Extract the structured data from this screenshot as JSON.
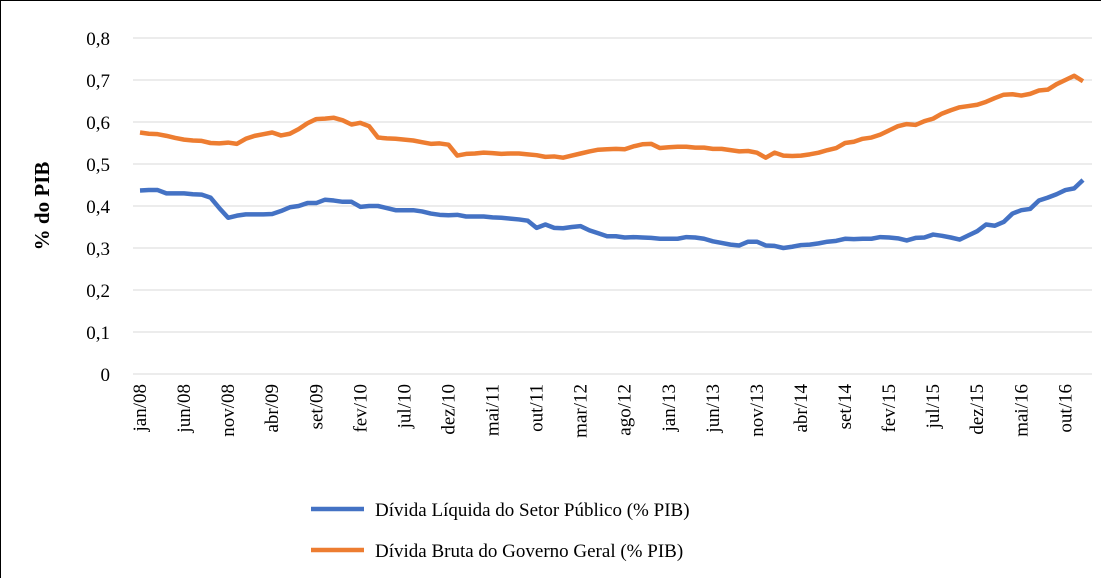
{
  "chart_data": {
    "type": "line",
    "ylabel": "% do PIB",
    "categories": [
      "jan/08",
      null,
      null,
      null,
      null,
      "jun/08",
      null,
      null,
      null,
      null,
      "nov/08",
      null,
      null,
      null,
      null,
      "abr/09",
      null,
      null,
      null,
      null,
      "set/09",
      null,
      null,
      null,
      null,
      "fev/10",
      null,
      null,
      null,
      null,
      "jul/10",
      null,
      null,
      null,
      null,
      "dez/10",
      null,
      null,
      null,
      null,
      "mai/11",
      null,
      null,
      null,
      null,
      "out/11",
      null,
      null,
      null,
      null,
      "mar/12",
      null,
      null,
      null,
      null,
      "ago/12",
      null,
      null,
      null,
      null,
      "jan/13",
      null,
      null,
      null,
      null,
      "jun/13",
      null,
      null,
      null,
      null,
      "nov/13",
      null,
      null,
      null,
      null,
      "abr/14",
      null,
      null,
      null,
      null,
      "set/14",
      null,
      null,
      null,
      null,
      "fev/15",
      null,
      null,
      null,
      null,
      "jul/15",
      null,
      null,
      null,
      null,
      "dez/15",
      null,
      null,
      null,
      null,
      "mai/16",
      null,
      null,
      null,
      null,
      "out/16",
      null,
      null
    ],
    "series": [
      {
        "name": "Dívida Líquida do Setor Público (% PIB)",
        "color": "#4472c4",
        "values": [
          0.437,
          0.438,
          0.438,
          0.43,
          0.43,
          0.43,
          0.428,
          0.427,
          0.42,
          0.395,
          0.372,
          0.377,
          0.38,
          0.38,
          0.38,
          0.381,
          0.388,
          0.397,
          0.4,
          0.407,
          0.407,
          0.415,
          0.413,
          0.41,
          0.41,
          0.398,
          0.4,
          0.4,
          0.395,
          0.39,
          0.39,
          0.39,
          0.387,
          0.382,
          0.379,
          0.378,
          0.379,
          0.375,
          0.375,
          0.375,
          0.373,
          0.372,
          0.37,
          0.368,
          0.365,
          0.348,
          0.356,
          0.348,
          0.347,
          0.35,
          0.352,
          0.342,
          0.335,
          0.328,
          0.328,
          0.325,
          0.326,
          0.325,
          0.324,
          0.322,
          0.322,
          0.322,
          0.326,
          0.325,
          0.322,
          0.316,
          0.312,
          0.308,
          0.306,
          0.315,
          0.315,
          0.306,
          0.305,
          0.3,
          0.303,
          0.307,
          0.308,
          0.311,
          0.315,
          0.317,
          0.322,
          0.321,
          0.322,
          0.322,
          0.326,
          0.325,
          0.323,
          0.318,
          0.324,
          0.325,
          0.332,
          0.329,
          0.325,
          0.32,
          0.33,
          0.34,
          0.356,
          0.353,
          0.362,
          0.382,
          0.39,
          0.393,
          0.413,
          0.42,
          0.428,
          0.438,
          0.442,
          0.462
        ]
      },
      {
        "name": "Dívida Bruta do Governo Geral (% PIB)",
        "color": "#ed7d31",
        "values": [
          0.575,
          0.572,
          0.571,
          0.567,
          0.562,
          0.558,
          0.556,
          0.555,
          0.55,
          0.549,
          0.551,
          0.548,
          0.56,
          0.567,
          0.571,
          0.575,
          0.568,
          0.572,
          0.583,
          0.597,
          0.607,
          0.608,
          0.61,
          0.604,
          0.594,
          0.598,
          0.59,
          0.563,
          0.561,
          0.56,
          0.558,
          0.556,
          0.552,
          0.548,
          0.549,
          0.546,
          0.52,
          0.524,
          0.525,
          0.527,
          0.526,
          0.524,
          0.525,
          0.525,
          0.523,
          0.521,
          0.517,
          0.518,
          0.515,
          0.52,
          0.525,
          0.53,
          0.534,
          0.535,
          0.536,
          0.535,
          0.542,
          0.547,
          0.548,
          0.538,
          0.54,
          0.541,
          0.541,
          0.539,
          0.539,
          0.536,
          0.536,
          0.533,
          0.53,
          0.531,
          0.527,
          0.515,
          0.527,
          0.52,
          0.519,
          0.52,
          0.523,
          0.527,
          0.533,
          0.538,
          0.55,
          0.553,
          0.56,
          0.563,
          0.57,
          0.58,
          0.59,
          0.595,
          0.593,
          0.602,
          0.608,
          0.62,
          0.628,
          0.635,
          0.638,
          0.641,
          0.648,
          0.657,
          0.665,
          0.666,
          0.663,
          0.667,
          0.675,
          0.677,
          0.69,
          0.7,
          0.71,
          0.697
        ]
      }
    ],
    "ylim": [
      0,
      0.8
    ],
    "yticks": [
      0,
      {
        "value": 0.1,
        "label": "0,1"
      },
      {
        "value": 0.2,
        "label": "0,2"
      },
      {
        "value": 0.3,
        "label": "0,3"
      },
      {
        "value": 0.4,
        "label": "0,4"
      },
      {
        "value": 0.5,
        "label": "0,5"
      },
      {
        "value": 0.6,
        "label": "0,6"
      },
      {
        "value": 0.7,
        "label": "0,7"
      },
      {
        "value": 0.8,
        "label": "0,8"
      }
    ],
    "grid": true,
    "legend": "bottom"
  }
}
